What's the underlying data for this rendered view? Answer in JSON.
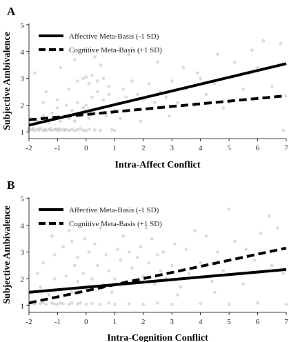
{
  "chart_data": [
    {
      "panel_label": "A",
      "type": "line",
      "xlabel": "Intra-Affect Conflict",
      "ylabel": "Subjective Ambivalence",
      "xlim": [
        -2,
        7
      ],
      "ylim": [
        1,
        5
      ],
      "xticks": [
        "-2",
        "-1",
        "0",
        "1",
        "2",
        "3",
        "4",
        "5",
        "6",
        "7"
      ],
      "yticks": [
        "1",
        "2",
        "3",
        "4",
        "5"
      ],
      "grid": false,
      "legend_position": "top-left",
      "series": [
        {
          "name": "Affective Meta-Basis (-1 SD)",
          "style": "solid",
          "color": "#000000",
          "x": [
            -2,
            7
          ],
          "y": [
            1.25,
            3.55
          ]
        },
        {
          "name": "Cognitive Meta-Basis (+1 SD)",
          "style": "dashed",
          "color": "#000000",
          "x": [
            -2,
            7
          ],
          "y": [
            1.45,
            2.35
          ]
        }
      ],
      "scatter": {
        "color": "#bdbdbd",
        "points": [
          [
            -2,
            1.05
          ],
          [
            -2,
            1.1
          ],
          [
            -2,
            1.15
          ],
          [
            -2,
            1.05
          ],
          [
            -1.9,
            1.08
          ],
          [
            -1.85,
            1.12
          ],
          [
            -1.8,
            1.05
          ],
          [
            -1.7,
            1.1
          ],
          [
            -1.65,
            1.07
          ],
          [
            -1.6,
            1.13
          ],
          [
            -1.5,
            1.05
          ],
          [
            -1.45,
            1.1
          ],
          [
            -1.4,
            1.06
          ],
          [
            -1.3,
            1.09
          ],
          [
            -1.25,
            1.12
          ],
          [
            -1.2,
            1.05
          ],
          [
            -1.1,
            1.08
          ],
          [
            -1.05,
            1.1
          ],
          [
            -1,
            1.05
          ],
          [
            -0.95,
            1.12
          ],
          [
            -0.9,
            1.07
          ],
          [
            -0.8,
            1.1
          ],
          [
            -0.75,
            1.05
          ],
          [
            -0.7,
            1.09
          ],
          [
            -0.6,
            1.06
          ],
          [
            -0.5,
            1.1
          ],
          [
            -0.4,
            1.05
          ],
          [
            -0.3,
            1.08
          ],
          [
            -0.2,
            1.12
          ],
          [
            -0.1,
            1.06
          ],
          [
            0,
            1.05
          ],
          [
            0.1,
            1.1
          ],
          [
            0.3,
            1.07
          ],
          [
            0.5,
            1.05
          ],
          [
            0.9,
            1.08
          ],
          [
            1,
            1.05
          ],
          [
            -1.9,
            1.5
          ],
          [
            -1.7,
            1.4
          ],
          [
            -1.5,
            1.6
          ],
          [
            -1.3,
            1.35
          ],
          [
            -1.2,
            1.7
          ],
          [
            -1.1,
            1.5
          ],
          [
            -1,
            1.9
          ],
          [
            -0.9,
            1.4
          ],
          [
            -0.8,
            1.6
          ],
          [
            -0.7,
            2.0
          ],
          [
            -0.6,
            1.5
          ],
          [
            -0.5,
            1.8
          ],
          [
            -0.4,
            1.4
          ],
          [
            -0.3,
            2.1
          ],
          [
            -0.2,
            1.6
          ],
          [
            -0.1,
            1.9
          ],
          [
            0,
            2.0
          ],
          [
            0.1,
            1.5
          ],
          [
            0.2,
            2.3
          ],
          [
            0.3,
            1.7
          ],
          [
            0.4,
            2.5
          ],
          [
            0.5,
            1.9
          ],
          [
            0.6,
            2.2
          ],
          [
            0.7,
            1.6
          ],
          [
            0.8,
            2.4
          ],
          [
            0.9,
            2.0
          ],
          [
            1,
            1.8
          ],
          [
            1.1,
            2.1
          ],
          [
            1.2,
            1.5
          ],
          [
            1.4,
            2.3
          ],
          [
            -1.4,
            2.5
          ],
          [
            -1,
            2.2
          ],
          [
            -0.6,
            2.6
          ],
          [
            -0.3,
            2.9
          ],
          [
            -0.1,
            3.0
          ],
          [
            0,
            3.05
          ],
          [
            0.1,
            2.8
          ],
          [
            0.2,
            3.1
          ],
          [
            0.4,
            2.9
          ],
          [
            0.6,
            3.0
          ],
          [
            0.8,
            2.7
          ],
          [
            1.3,
            2.6
          ],
          [
            1.6,
            2.9
          ],
          [
            1.8,
            2.4
          ],
          [
            2,
            2.2
          ],
          [
            2.2,
            2.8
          ],
          [
            2.4,
            2.1
          ],
          [
            2.6,
            2.5
          ],
          [
            2.8,
            2.3
          ],
          [
            3,
            2.9
          ],
          [
            3.2,
            2.1
          ],
          [
            3.5,
            2.6
          ],
          [
            3.8,
            2.0
          ],
          [
            4,
            3.0
          ],
          [
            4.2,
            2.4
          ],
          [
            4.5,
            2.8
          ],
          [
            5,
            2.1
          ],
          [
            5.5,
            2.6
          ],
          [
            6,
            3.4
          ],
          [
            6.5,
            2.7
          ],
          [
            -1.8,
            3.2
          ],
          [
            -0.9,
            3.4
          ],
          [
            -0.4,
            3.7
          ],
          [
            0.3,
            3.8
          ],
          [
            0.5,
            3.5
          ],
          [
            1.5,
            3.9
          ],
          [
            2.5,
            3.6
          ],
          [
            3.4,
            3.4
          ],
          [
            4.6,
            3.9
          ],
          [
            5.8,
            4.05
          ],
          [
            6.8,
            4.3
          ],
          [
            6.2,
            4.4
          ],
          [
            5.2,
            3.6
          ],
          [
            3.9,
            3.2
          ],
          [
            -1.5,
            2.1
          ],
          [
            -0.05,
            4.1
          ],
          [
            2.9,
            1.6
          ],
          [
            4.8,
            1.9
          ],
          [
            1.9,
            1.4
          ],
          [
            6.9,
            1.05
          ]
        ]
      }
    },
    {
      "panel_label": "B",
      "type": "line",
      "xlabel": "Intra-Cognition Conflict",
      "ylabel": "Subjective Ambivalence",
      "xlim": [
        -2,
        7
      ],
      "ylim": [
        1,
        5
      ],
      "xticks": [
        "-2",
        "-1",
        "0",
        "1",
        "2",
        "3",
        "4",
        "5",
        "6",
        "7"
      ],
      "yticks": [
        "1",
        "2",
        "3",
        "4",
        "5"
      ],
      "grid": false,
      "legend_position": "top-left",
      "series": [
        {
          "name": "Affective Meta-Basis (-1 SD)",
          "style": "solid",
          "color": "#000000",
          "x": [
            -2,
            7
          ],
          "y": [
            1.5,
            2.35
          ]
        },
        {
          "name": "Cognitive Meta-Basis (+1 SD)",
          "style": "dashed",
          "color": "#000000",
          "x": [
            -2,
            7
          ],
          "y": [
            1.1,
            3.15
          ]
        }
      ],
      "scatter": {
        "color": "#bdbdbd",
        "points": [
          [
            -2,
            1.05
          ],
          [
            -1.9,
            1.1
          ],
          [
            -1.8,
            1.05
          ],
          [
            -1.6,
            1.08
          ],
          [
            -1.5,
            1.12
          ],
          [
            -1.4,
            1.05
          ],
          [
            -1.2,
            1.1
          ],
          [
            -1.1,
            1.06
          ],
          [
            -1,
            1.05
          ],
          [
            -0.9,
            1.1
          ],
          [
            -0.8,
            1.07
          ],
          [
            -0.6,
            1.05
          ],
          [
            -0.5,
            1.1
          ],
          [
            -0.3,
            1.06
          ],
          [
            -0.2,
            1.1
          ],
          [
            0,
            1.05
          ],
          [
            0.2,
            1.08
          ],
          [
            0.5,
            1.05
          ],
          [
            0.8,
            1.1
          ],
          [
            1,
            1.05
          ],
          [
            1.5,
            1.07
          ],
          [
            2,
            1.05
          ],
          [
            2.5,
            1.1
          ],
          [
            3,
            1.05
          ],
          [
            4,
            1.08
          ],
          [
            5,
            1.05
          ],
          [
            6,
            1.1
          ],
          [
            7,
            1.05
          ],
          [
            -1.9,
            1.5
          ],
          [
            -1.6,
            1.7
          ],
          [
            -1.3,
            1.4
          ],
          [
            -1.1,
            2.0
          ],
          [
            -0.9,
            1.6
          ],
          [
            -0.7,
            2.1
          ],
          [
            -0.5,
            1.5
          ],
          [
            -0.3,
            1.9
          ],
          [
            -0.1,
            2.2
          ],
          [
            0,
            1.6
          ],
          [
            0.2,
            2.0
          ],
          [
            0.4,
            2.5
          ],
          [
            0.6,
            1.8
          ],
          [
            0.8,
            2.3
          ],
          [
            1,
            2.0
          ],
          [
            1.2,
            2.7
          ],
          [
            1.4,
            1.9
          ],
          [
            1.6,
            2.4
          ],
          [
            1.8,
            2.8
          ],
          [
            2,
            2.1
          ],
          [
            2.2,
            2.6
          ],
          [
            2.4,
            1.8
          ],
          [
            2.6,
            2.3
          ],
          [
            2.8,
            2.0
          ],
          [
            3,
            2.5
          ],
          [
            3.3,
            1.7
          ],
          [
            3.6,
            2.2
          ],
          [
            4,
            2.6
          ],
          [
            4.4,
            1.9
          ],
          [
            4.8,
            2.3
          ],
          [
            -1.5,
            2.6
          ],
          [
            -1.1,
            2.9
          ],
          [
            -0.8,
            3.2
          ],
          [
            -0.5,
            3.4
          ],
          [
            -0.3,
            2.8
          ],
          [
            0.1,
            3.0
          ],
          [
            0.3,
            3.3
          ],
          [
            0.7,
            2.9
          ],
          [
            1.1,
            3.1
          ],
          [
            1.5,
            3.0
          ],
          [
            1.9,
            3.2
          ],
          [
            2.3,
            3.5
          ],
          [
            2.7,
            3.0
          ],
          [
            3.1,
            3.3
          ],
          [
            3.5,
            3.1
          ],
          [
            4.2,
            3.6
          ],
          [
            4.6,
            3.0
          ],
          [
            5.2,
            3.4
          ],
          [
            5.6,
            3.1
          ],
          [
            6.1,
            3.7
          ],
          [
            -1.2,
            3.6
          ],
          [
            -0.6,
            3.8
          ],
          [
            0.5,
            3.9
          ],
          [
            1.3,
            3.6
          ],
          [
            2.1,
            3.9
          ],
          [
            3.8,
            3.8
          ],
          [
            5,
            4.6
          ],
          [
            6.4,
            4.35
          ],
          [
            6.7,
            3.9
          ],
          [
            5.9,
            2.7
          ],
          [
            6.5,
            2.5
          ],
          [
            6.9,
            2.2
          ],
          [
            -1.7,
            2.2
          ],
          [
            -0.05,
            3.5
          ],
          [
            0.9,
            1.5
          ],
          [
            3.2,
            1.4
          ],
          [
            4.5,
            1.5
          ],
          [
            5.5,
            1.8
          ],
          [
            -0.4,
            2.5
          ],
          [
            2.5,
            2.9
          ]
        ]
      }
    }
  ]
}
